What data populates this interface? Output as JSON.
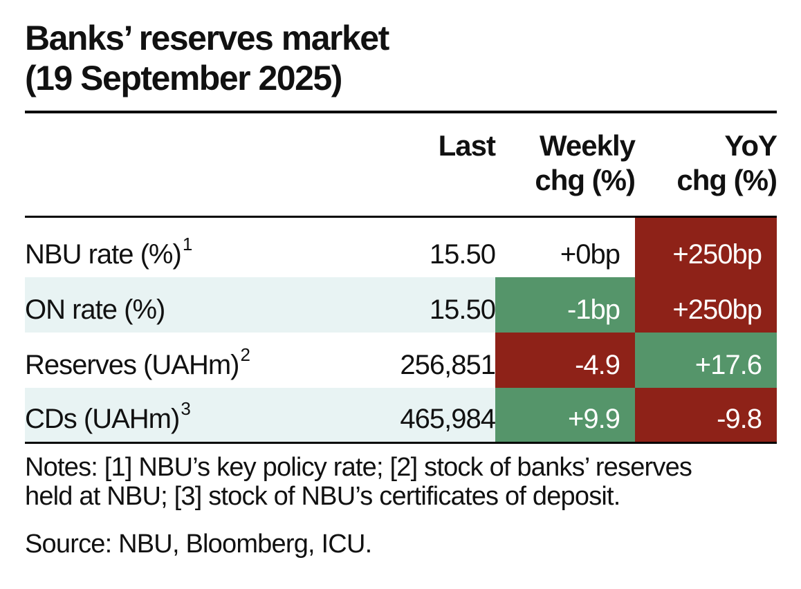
{
  "title": {
    "line1": "Banks’ reserves market",
    "line2": "(19 September 2025)"
  },
  "table": {
    "columns": [
      {
        "line1": "Last",
        "line2": ""
      },
      {
        "line1": "Weekly",
        "line2": "chg (%)"
      },
      {
        "line1": "YoY",
        "line2": "chg (%)"
      }
    ],
    "rows": [
      {
        "label": "NBU rate (%)",
        "note": "1",
        "last": "15.50",
        "weekly": "+0bp",
        "yoy": "+250bp",
        "weekly_color": "none",
        "yoy_color": "#8e2218"
      },
      {
        "label": "ON rate (%)",
        "note": "",
        "last": "15.50",
        "weekly": "-1bp",
        "yoy": "+250bp",
        "weekly_color": "#55956a",
        "yoy_color": "#8e2218"
      },
      {
        "label": "Reserves (UAHm)",
        "note": "2",
        "last": "256,851",
        "weekly": "-4.9",
        "yoy": "+17.6",
        "weekly_color": "#8e2218",
        "yoy_color": "#55956a"
      },
      {
        "label": "CDs (UAHm)",
        "note": "3",
        "last": "465,984",
        "weekly": "+9.9",
        "yoy": "-9.8",
        "weekly_color": "#55956a",
        "yoy_color": "#8e2218"
      }
    ]
  },
  "notes": {
    "line1": "Notes: [1] NBU’s key policy rate; [2] stock of banks’ reserves",
    "line2": "held at NBU; [3] stock of NBU’s certificates of deposit."
  },
  "source": "Source: NBU, Bloomberg, ICU.",
  "colors": {
    "negative_red": "#8e2218",
    "positive_green": "#55956a",
    "row_shade": "#e8f3f3"
  }
}
